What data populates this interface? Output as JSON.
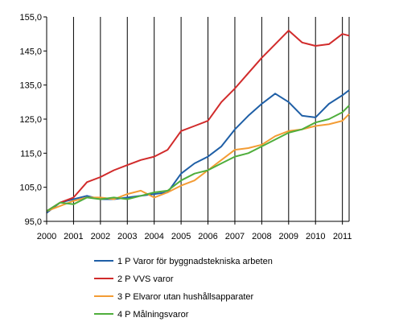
{
  "chart_data": {
    "type": "line",
    "title": "",
    "xlabel": "",
    "ylabel": "",
    "x_ticks": [
      "2000",
      "2001",
      "2002",
      "2003",
      "2004",
      "2005",
      "2006",
      "2007",
      "2008",
      "2009",
      "2010",
      "2011"
    ],
    "y_ticks": [
      "95,0",
      "105,0",
      "115,0",
      "125,0",
      "135,0",
      "145,0",
      "155,0"
    ],
    "xlim": [
      2000,
      2011.25
    ],
    "ylim": [
      95,
      155
    ],
    "grid": {
      "vertical": true,
      "horizontal": false
    },
    "legend_placement": "bottom",
    "x": [
      2000,
      2000.5,
      2001,
      2001.5,
      2002,
      2002.5,
      2003,
      2003.5,
      2004,
      2004.5,
      2005,
      2005.5,
      2006,
      2006.5,
      2007,
      2007.5,
      2008,
      2008.5,
      2009,
      2009.5,
      2010,
      2010.5,
      2011,
      2011.25
    ],
    "series": [
      {
        "name": "1 P Varor för byggnadstekniska arbeten",
        "color": "#1f5fa6",
        "values": [
          97.5,
          100.5,
          101.5,
          102.5,
          101.5,
          101.5,
          102.0,
          102.5,
          103.0,
          103.5,
          109.0,
          112.0,
          114.0,
          117.0,
          122.0,
          126.0,
          129.5,
          132.5,
          130.0,
          126.0,
          125.5,
          129.5,
          132.0,
          133.5
        ]
      },
      {
        "name": "2 P VVS varor",
        "color": "#d12b2b",
        "values": [
          98.0,
          100.5,
          102.0,
          106.5,
          108.0,
          110.0,
          111.5,
          113.0,
          114.0,
          116.0,
          121.5,
          123.0,
          124.5,
          130.0,
          134.0,
          138.5,
          143.0,
          147.0,
          151.0,
          147.5,
          146.5,
          147.0,
          150.0,
          149.5
        ]
      },
      {
        "name": "3 P Elvaror utan hushållsapparater",
        "color": "#f39c34",
        "values": [
          98.0,
          99.5,
          101.0,
          102.0,
          102.0,
          101.5,
          103.0,
          104.0,
          102.0,
          103.5,
          105.5,
          107.0,
          110.0,
          113.0,
          116.0,
          116.5,
          117.5,
          120.0,
          121.5,
          122.0,
          123.0,
          123.5,
          124.5,
          126.5
        ]
      },
      {
        "name": "4 P Målningsvaror",
        "color": "#4fae3c",
        "values": [
          98.0,
          100.5,
          100.0,
          102.0,
          101.5,
          102.0,
          101.5,
          102.5,
          103.5,
          104.0,
          107.0,
          109.0,
          110.0,
          112.0,
          114.0,
          115.0,
          117.0,
          119.0,
          121.0,
          122.0,
          124.0,
          125.0,
          127.0,
          129.0
        ]
      }
    ]
  }
}
